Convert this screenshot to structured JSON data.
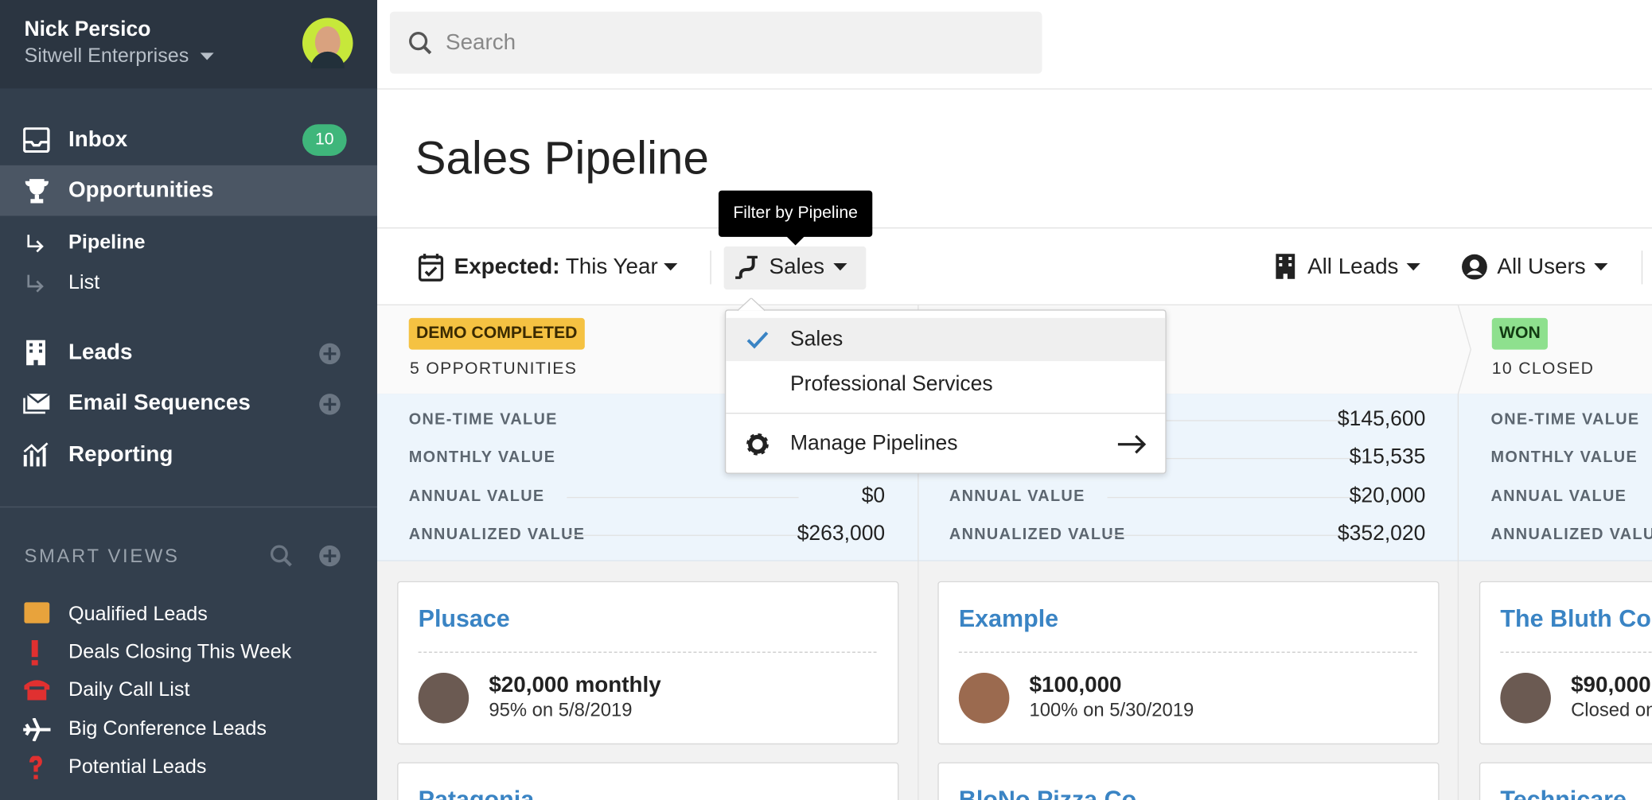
{
  "user": {
    "name": "Nick Persico",
    "company": "Sitwell Enterprises"
  },
  "nav": {
    "inbox": "Inbox",
    "inbox_badge": "10",
    "opportunities": "Opportunities",
    "pipeline": "Pipeline",
    "list": "List",
    "leads": "Leads",
    "email_sequences": "Email Sequences",
    "reporting": "Reporting"
  },
  "smart_views": {
    "title": "SMART VIEWS",
    "items": [
      "Qualified Leads",
      "Deals Closing This Week",
      "Daily Call List",
      "Big Conference Leads",
      "Potential Leads"
    ]
  },
  "search": {
    "placeholder": "Search"
  },
  "header": {
    "title": "Sales Pipeline"
  },
  "tooltip": "Filter by Pipeline",
  "filters": {
    "expected_label": "Expected:",
    "expected_value": "This Year",
    "pipeline": "Sales",
    "leads": "All Leads",
    "users": "All Users"
  },
  "dropdown": {
    "items": [
      "Sales",
      "Professional Services"
    ],
    "manage": "Manage Pipelines"
  },
  "value_labels": [
    "ONE-TIME VALUE",
    "MONTHLY VALUE",
    "ANNUAL VALUE",
    "ANNUALIZED VALUE"
  ],
  "columns": [
    {
      "status": "DEMO COMPLETED",
      "count": "5 OPPORTUNITIES",
      "values": {
        "annual": "$0",
        "annualized": "$263,000"
      },
      "cards": [
        {
          "name": "Plusace",
          "amount": "$20,000 monthly",
          "detail": "95% on 5/8/2019"
        },
        {
          "name": "Patagonia"
        }
      ]
    },
    {
      "values": {
        "one_time": "$145,600",
        "monthly": "$15,535",
        "annual": "$20,000",
        "annualized": "$352,020"
      },
      "cards": [
        {
          "name": "Example",
          "amount": "$100,000",
          "detail": "100% on 5/30/2019"
        },
        {
          "name": "BloNo Pizza Co"
        }
      ]
    },
    {
      "status": "WON",
      "count": "10 CLOSED",
      "cards": [
        {
          "name": "The Bluth Co",
          "amount": "$90,000",
          "detail": "Closed on"
        },
        {
          "name": "Technicare"
        }
      ]
    }
  ]
}
